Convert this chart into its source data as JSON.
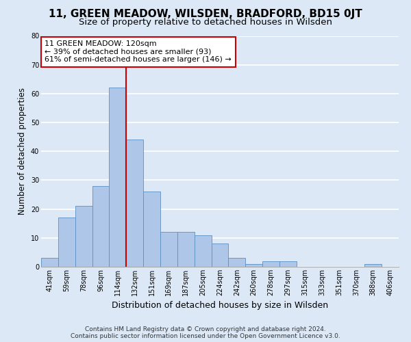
{
  "title": "11, GREEN MEADOW, WILSDEN, BRADFORD, BD15 0JT",
  "subtitle": "Size of property relative to detached houses in Wilsden",
  "xlabel": "Distribution of detached houses by size in Wilsden",
  "ylabel": "Number of detached properties",
  "footer_line1": "Contains HM Land Registry data © Crown copyright and database right 2024.",
  "footer_line2": "Contains public sector information licensed under the Open Government Licence v3.0.",
  "bar_labels": [
    "41sqm",
    "59sqm",
    "78sqm",
    "96sqm",
    "114sqm",
    "132sqm",
    "151sqm",
    "169sqm",
    "187sqm",
    "205sqm",
    "224sqm",
    "242sqm",
    "260sqm",
    "278sqm",
    "297sqm",
    "315sqm",
    "333sqm",
    "351sqm",
    "370sqm",
    "388sqm",
    "406sqm"
  ],
  "bar_values": [
    3,
    17,
    21,
    28,
    62,
    44,
    26,
    12,
    12,
    11,
    8,
    3,
    1,
    2,
    2,
    0,
    0,
    0,
    0,
    1,
    0
  ],
  "bar_color": "#aec6e8",
  "bar_edge_color": "#5a8fc2",
  "property_line_x": 4.5,
  "property_line_color": "#cc0000",
  "annotation_text": "11 GREEN MEADOW: 120sqm\n← 39% of detached houses are smaller (93)\n61% of semi-detached houses are larger (146) →",
  "annotation_box_color": "#ffffff",
  "annotation_box_edge_color": "#cc0000",
  "ylim": [
    0,
    80
  ],
  "yticks": [
    0,
    10,
    20,
    30,
    40,
    50,
    60,
    70,
    80
  ],
  "background_color": "#dce8f5",
  "axes_background_color": "#dce8f5",
  "grid_color": "#ffffff",
  "title_fontsize": 11,
  "subtitle_fontsize": 9.5,
  "xlabel_fontsize": 9,
  "ylabel_fontsize": 8.5,
  "tick_fontsize": 7,
  "annotation_fontsize": 8,
  "footer_fontsize": 6.5
}
